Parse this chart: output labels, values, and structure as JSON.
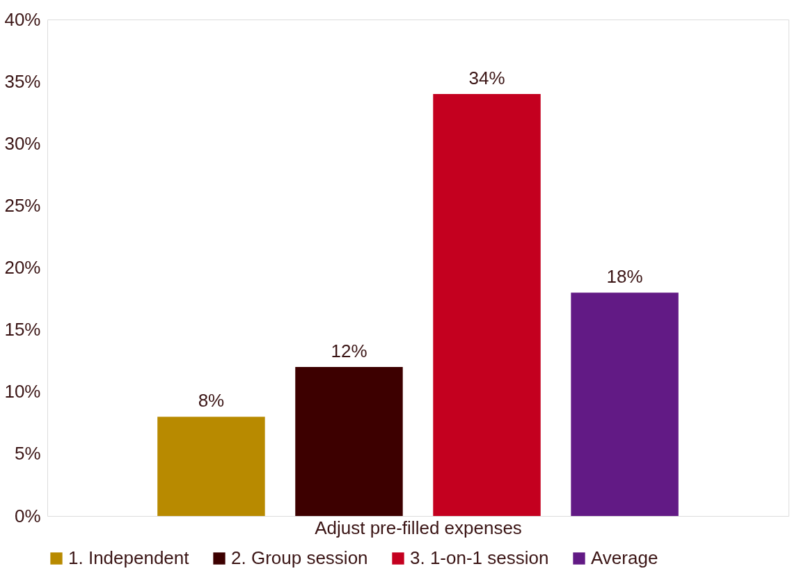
{
  "chart_data": {
    "type": "bar",
    "xlabel": "Adjust pre-filled expenses",
    "categories": [
      null
    ],
    "series": [
      {
        "name": "1. Independent",
        "color": "#b88a00",
        "values": [
          8
        ],
        "value_labels": [
          "8%"
        ]
      },
      {
        "name": "2. Group session",
        "color": "#3d0000",
        "values": [
          12
        ],
        "value_labels": [
          "12%"
        ]
      },
      {
        "name": "3. 1-on-1 session",
        "color": "#c4001f",
        "values": [
          34
        ],
        "value_labels": [
          "34%"
        ]
      },
      {
        "name": "Average",
        "color": "#621a85",
        "values": [
          18
        ],
        "value_labels": [
          "18%"
        ]
      }
    ],
    "ylim": [
      0,
      40
    ],
    "yticks": [
      {
        "value": 0,
        "label": "0%"
      },
      {
        "value": 5,
        "label": "5%"
      },
      {
        "value": 10,
        "label": "10%"
      },
      {
        "value": 15,
        "label": "15%"
      },
      {
        "value": 20,
        "label": "20%"
      },
      {
        "value": 25,
        "label": "25%"
      },
      {
        "value": 30,
        "label": "30%"
      },
      {
        "value": 35,
        "label": "35%"
      },
      {
        "value": 40,
        "label": "40%"
      }
    ],
    "grid": false,
    "legend": "bottom"
  }
}
